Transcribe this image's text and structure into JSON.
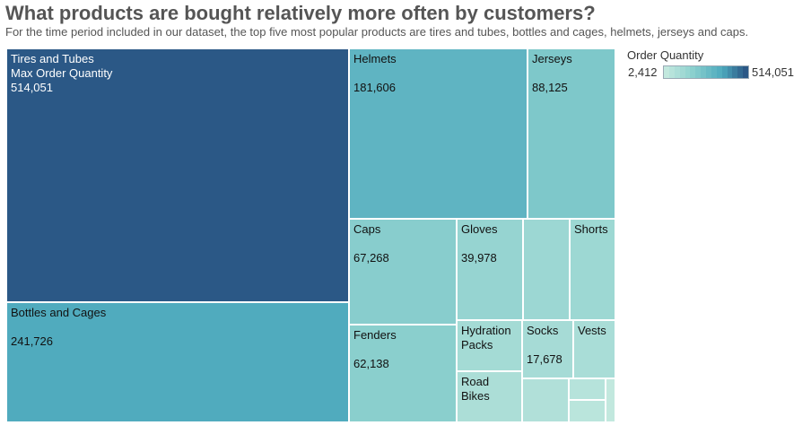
{
  "chart_data": {
    "type": "treemap",
    "title": "What products are bought relatively more often by customers?",
    "subtitle": "For the time period included in our dataset, the top five most popular products are tires and tubes, bottles and cages, helmets, jerseys and caps.",
    "measure": "Order Quantity",
    "legend": {
      "title": "Order Quantity",
      "min_label": "2,412",
      "max_label": "514,051",
      "min": 2412,
      "max": 514051,
      "colors": [
        "#c2e8de",
        "#2b5886"
      ]
    },
    "nodes": [
      {
        "name": "Tires and Tubes",
        "value": 514051,
        "value_label": "514,051",
        "tooltip_label": "Max Order Quantity"
      },
      {
        "name": "Bottles and Cages",
        "value": 241726,
        "value_label": "241,726"
      },
      {
        "name": "Helmets",
        "value": 181606,
        "value_label": "181,606"
      },
      {
        "name": "Jerseys",
        "value": 88125,
        "value_label": "88,125"
      },
      {
        "name": "Caps",
        "value": 67268,
        "value_label": "67,268"
      },
      {
        "name": "Fenders",
        "value": 62138,
        "value_label": "62,138"
      },
      {
        "name": "Gloves",
        "value": 39978,
        "value_label": "39,978"
      },
      {
        "name": "",
        "value": 30000
      },
      {
        "name": "Shorts",
        "value": 28000
      },
      {
        "name": "Hydration Packs",
        "value": 20000
      },
      {
        "name": "Socks",
        "value": 17678,
        "value_label": "17,678"
      },
      {
        "name": "Vests",
        "value": 14000
      },
      {
        "name": "Road Bikes",
        "value": 12000
      },
      {
        "name": "",
        "value": 8000
      },
      {
        "name": "",
        "value": 5000
      },
      {
        "name": "",
        "value": 3500
      },
      {
        "name": "",
        "value": 2412
      }
    ]
  }
}
